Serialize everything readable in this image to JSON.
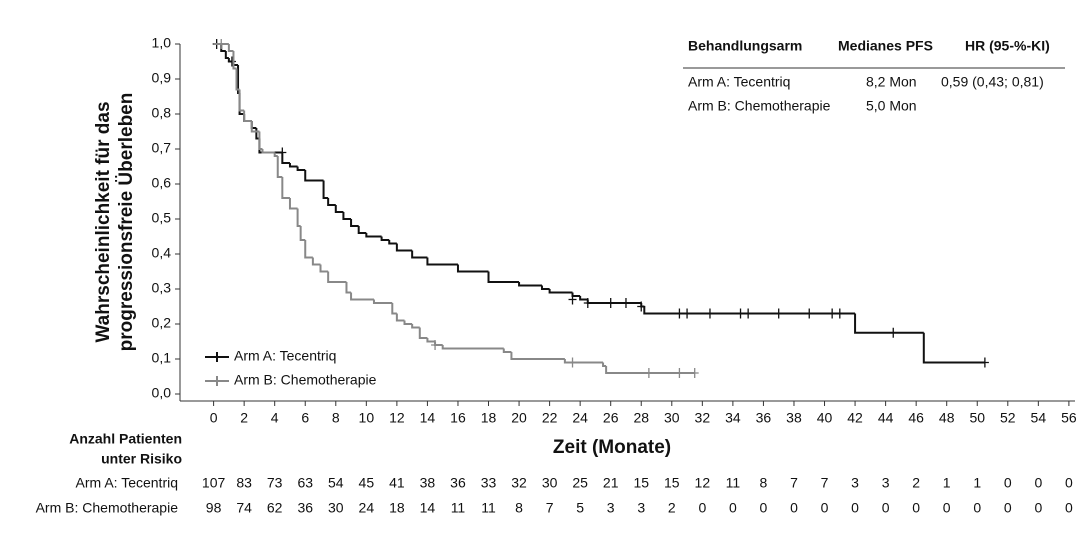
{
  "chart_data": {
    "type": "kaplan-meier",
    "y_label": [
      "Wahrscheinlichkeit für das",
      "progressionsfreie Überleben"
    ],
    "x_label": "Zeit (Monate)",
    "xlim": [
      -2.2,
      56.4
    ],
    "ylim": [
      -0.02,
      1.0
    ],
    "xticks": [
      0,
      2,
      4,
      6,
      8,
      10,
      12,
      14,
      16,
      18,
      20,
      22,
      24,
      26,
      28,
      30,
      32,
      34,
      36,
      38,
      40,
      42,
      44,
      46,
      48,
      50,
      52,
      54,
      56
    ],
    "yticks": [
      {
        "value": 0.0,
        "label": "0,0"
      },
      {
        "value": 0.1,
        "label": "0,1"
      },
      {
        "value": 0.2,
        "label": "0,2"
      },
      {
        "value": 0.3,
        "label": "0,3"
      },
      {
        "value": 0.4,
        "label": "0,4"
      },
      {
        "value": 0.5,
        "label": "0,5"
      },
      {
        "value": 0.6,
        "label": "0,6"
      },
      {
        "value": 0.7,
        "label": "0,7"
      },
      {
        "value": 0.8,
        "label": "0,8"
      },
      {
        "value": 0.9,
        "label": "0,9"
      },
      {
        "value": 1.0,
        "label": "1,0"
      }
    ],
    "legend_position": "lower left",
    "series": [
      {
        "name": "Arm A: Tecentriq",
        "color": "#111111",
        "x": [
          0,
          0.5,
          0.8,
          1.0,
          1.3,
          1.6,
          1.7,
          2.0,
          2.5,
          2.8,
          3.0,
          4.5,
          5.0,
          5.5,
          6.0,
          7.2,
          7.5,
          8.0,
          8.5,
          9.0,
          9.5,
          10.0,
          11.0,
          11.5,
          12.0,
          13.0,
          14.0,
          16.0,
          18.0,
          20.0,
          21.5,
          22.0,
          23.5,
          24.0,
          24.5,
          28.0,
          28.2,
          42.0,
          46.5,
          50.5
        ],
        "values": [
          1.0,
          0.98,
          0.96,
          0.95,
          0.94,
          0.86,
          0.8,
          0.78,
          0.76,
          0.73,
          0.69,
          0.66,
          0.65,
          0.64,
          0.61,
          0.56,
          0.54,
          0.52,
          0.5,
          0.48,
          0.46,
          0.45,
          0.44,
          0.43,
          0.41,
          0.39,
          0.37,
          0.35,
          0.32,
          0.31,
          0.3,
          0.29,
          0.28,
          0.27,
          0.26,
          0.25,
          0.23,
          0.175,
          0.09,
          0.09
        ],
        "censored_x": [
          0.2,
          1.2,
          4.5,
          23.5,
          24.5,
          26,
          27,
          28,
          30.5,
          31,
          32.5,
          34.5,
          35,
          37,
          39,
          40.5,
          41,
          44.5,
          50.5
        ],
        "censored_values": [
          1.0,
          0.95,
          0.69,
          0.27,
          0.26,
          0.26,
          0.26,
          0.25,
          0.23,
          0.23,
          0.23,
          0.23,
          0.23,
          0.23,
          0.23,
          0.23,
          0.23,
          0.175,
          0.09
        ],
        "at_risk": [
          107,
          83,
          73,
          63,
          54,
          45,
          41,
          38,
          36,
          33,
          32,
          30,
          25,
          21,
          15,
          15,
          12,
          11,
          8,
          7,
          7,
          3,
          3,
          2,
          1,
          1,
          0,
          0,
          0
        ]
      },
      {
        "name": "Arm B: Chemotherapie",
        "color": "#888888",
        "x": [
          0,
          1.0,
          1.3,
          1.5,
          1.7,
          2.0,
          2.5,
          3.0,
          3.2,
          4.0,
          4.2,
          4.5,
          5.0,
          5.5,
          5.7,
          6.0,
          6.5,
          7.0,
          7.5,
          8.7,
          9.0,
          10.5,
          11.7,
          12.0,
          12.5,
          13.0,
          13.5,
          14.0,
          14.5,
          15.0,
          19.0,
          19.5,
          23.0,
          25.5,
          25.7,
          31.5
        ],
        "values": [
          1.0,
          0.98,
          0.93,
          0.87,
          0.81,
          0.78,
          0.75,
          0.7,
          0.69,
          0.68,
          0.62,
          0.56,
          0.53,
          0.48,
          0.44,
          0.39,
          0.37,
          0.35,
          0.32,
          0.29,
          0.27,
          0.26,
          0.23,
          0.21,
          0.2,
          0.19,
          0.16,
          0.15,
          0.14,
          0.13,
          0.12,
          0.1,
          0.09,
          0.08,
          0.06,
          0.06
        ],
        "censored_x": [
          0.5,
          14.5,
          23.5,
          28.5,
          30.5,
          31.5
        ],
        "censored_values": [
          1.0,
          0.14,
          0.09,
          0.06,
          0.06,
          0.06
        ],
        "at_risk": [
          98,
          74,
          62,
          36,
          30,
          24,
          18,
          14,
          11,
          11,
          8,
          7,
          5,
          3,
          3,
          2,
          0,
          0,
          0,
          0,
          0,
          0,
          0,
          0,
          0,
          0,
          0,
          0,
          0
        ]
      }
    ],
    "risk_table_title": [
      "Anzahl Patienten",
      "unter Risiko"
    ],
    "summary_table": {
      "columns": [
        "Behandlungsarm",
        "Medianes PFS",
        "HR (95-%-KI)"
      ],
      "rows": [
        [
          "Arm A: Tecentriq",
          "8,2 Mon",
          "0,59 (0,43; 0,81)"
        ],
        [
          "Arm B: Chemotherapie",
          "5,0 Mon"
        ]
      ]
    }
  }
}
